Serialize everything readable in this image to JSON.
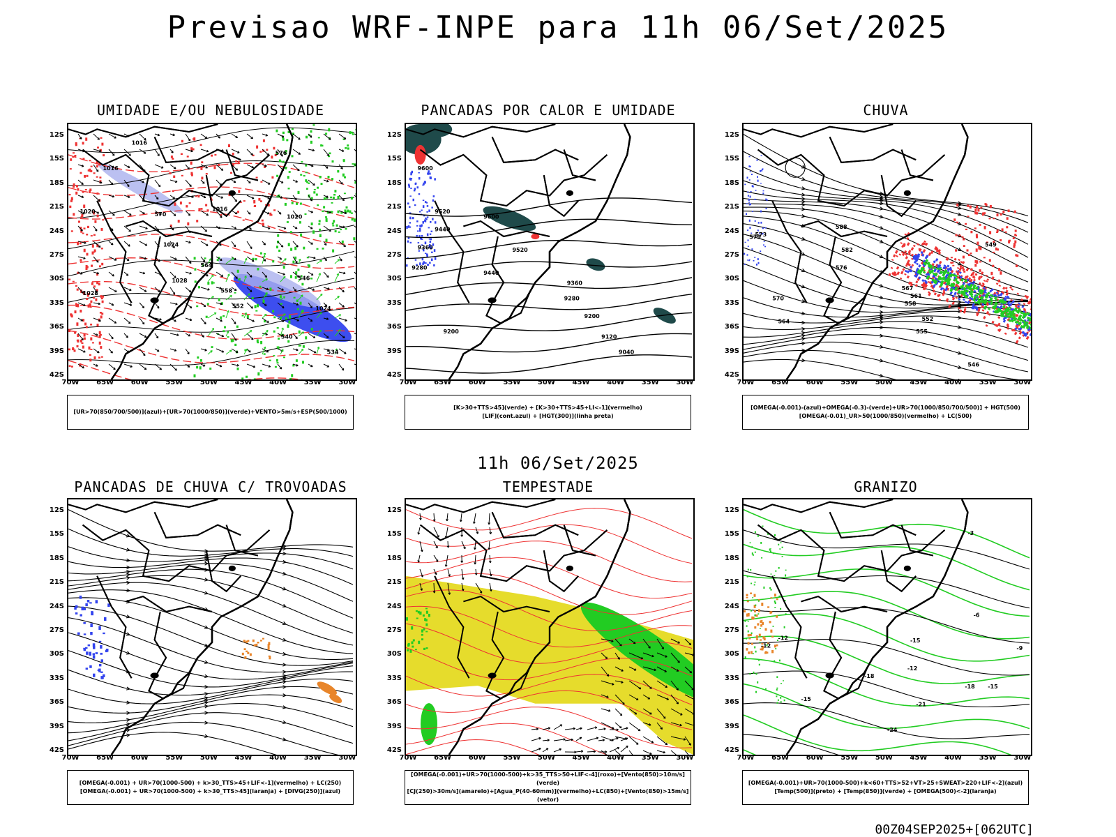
{
  "title": "Previsao WRF-INPE  para 11h 06/Set/2025",
  "mid_date": "11h 06/Set/2025",
  "footer": "00Z04SEP2025+[062UTC]",
  "axes": {
    "lat_ticks": [
      "12S",
      "15S",
      "18S",
      "21S",
      "24S",
      "27S",
      "30S",
      "33S",
      "36S",
      "39S",
      "42S"
    ],
    "lon_ticks": [
      "70W",
      "65W",
      "60W",
      "55W",
      "50W",
      "45W",
      "40W",
      "35W",
      "30W"
    ]
  },
  "colors": {
    "green": "#22cc22",
    "red": "#ee3333",
    "blue": "#3344ee",
    "lavender": "#aab0ee",
    "yellow": "#e6dc2c",
    "darkteal": "#1f4a4a",
    "orange": "#e8852a",
    "black": "#000000"
  },
  "panels": [
    {
      "id": "umidade",
      "title": "UMIDADE E/OU NEBULOSIDADE",
      "legend": [
        "[UR>70(850/700/500)](azul)+[UR>70(1000/850)](verde)+VENTO>5m/s+ESP(500/1000)"
      ],
      "contour_labels": [
        "1016",
        "1020",
        "1024",
        "1028",
        "1016",
        "1020",
        "1024",
        "1028",
        "1016",
        "576",
        "570",
        "564",
        "558",
        "552",
        "546",
        "540",
        "534"
      ]
    },
    {
      "id": "pancadas-calor",
      "title": "PANCADAS POR CALOR E UMIDADE",
      "legend": [
        "[K>30+TTS>45](verde) + [K>30+TTS>45+LI<-1](vermelho)",
        "[LIF](cont.azul) + [HGT(300)](linha preta)"
      ],
      "contour_labels": [
        "9600",
        "9520",
        "9440",
        "9360",
        "9280",
        "9200",
        "9600",
        "9520",
        "9440",
        "9360",
        "9280",
        "9200",
        "9120",
        "9040"
      ]
    },
    {
      "id": "chuva",
      "title": "CHUVA",
      "legend": [
        "[OMEGA(-0.001)-(azul)+OMEGA(-0.3)-(verde)+UR>70(1000/850/700/500)] + HGT(500)",
        "[OMEGA(-0.01)_UR>50(1000/850)(vermelho) + LC(500)"
      ],
      "contour_labels": [
        "588",
        "582",
        "576",
        "570",
        "564",
        "558",
        "552",
        "546",
        "579",
        "573",
        "567",
        "561",
        "555",
        "549"
      ]
    },
    {
      "id": "pancadas-trovoadas",
      "title": "PANCADAS DE CHUVA C/ TROVOADAS",
      "legend": [
        "[OMEGA(-0.001) + UR>70(1000-500) + k>30_TTS>45+LIF<-1](vermelho) + LC(250)",
        "[OMEGA(-0.001) + UR>70(1000-500) + k>30_TTS>45](laranja) + [DIVG(250)](azul)"
      ],
      "contour_labels": []
    },
    {
      "id": "tempestade",
      "title": "TEMPESTADE",
      "legend": [
        "[OMEGA(-0.001)+UR>70(1000-500)+k>35_TTS>50+LIF<-4](roxo)+[Vento(850)>10m/s](verde)",
        "[CJ(250)>30m/s](amarelo)+[Agua_P(40-60mm)](vermelho)+LC(850)+[Vento(850)>15m/s](vetor)"
      ],
      "contour_labels": []
    },
    {
      "id": "granizo",
      "title": "GRANIZO",
      "legend": [
        "[OMEGA(-0.001)+UR>70(1000-500)+k<60+TTS>52+VT>25+SWEAT>220+LIF<-2](azul)",
        "[Temp(500)](preto) + [Temp(850)](verde) + [OMEGA(500)<-2](laranja)"
      ],
      "contour_labels": [
        "-3",
        "-6",
        "-9",
        "-12",
        "-15",
        "-18",
        "-21",
        "-24",
        "-12",
        "-15",
        "-18",
        "-12",
        "-15"
      ]
    }
  ]
}
